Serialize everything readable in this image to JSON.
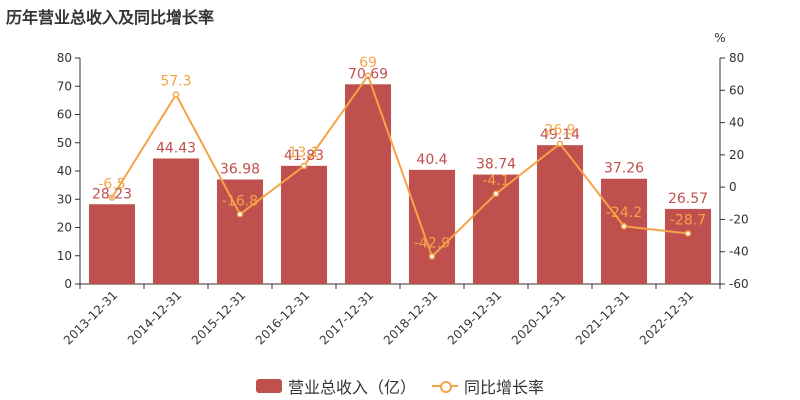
{
  "title": "历年营业总收入及同比增长率",
  "chart_data": {
    "type": "bar",
    "categories": [
      "2013-12-31",
      "2014-12-31",
      "2015-12-31",
      "2016-12-31",
      "2017-12-31",
      "2018-12-31",
      "2019-12-31",
      "2020-12-31",
      "2021-12-31",
      "2022-12-31"
    ],
    "series": [
      {
        "name": "营业总收入（亿）",
        "type": "bar",
        "axis": "left",
        "values": [
          28.23,
          44.43,
          36.98,
          41.83,
          70.69,
          40.4,
          38.74,
          49.14,
          37.26,
          26.57
        ],
        "labels": [
          "28.23",
          "44.43",
          "36.98",
          "41.83",
          "70.69",
          "40.4",
          "38.74",
          "49.14",
          "37.26",
          "26.57"
        ]
      },
      {
        "name": "同比增长率",
        "type": "line",
        "axis": "right",
        "values": [
          -6.5,
          57.3,
          -16.8,
          13.1,
          69,
          -42.9,
          -4.1,
          26.9,
          -24.2,
          -28.7
        ],
        "labels": [
          "-6.5",
          "57.3",
          "-16.8",
          "13.1",
          "69",
          "-42.9",
          "-4.1",
          "26.9",
          "-24.2",
          "-28.7"
        ]
      }
    ],
    "y_left": {
      "min": 0,
      "max": 80,
      "ticks": [
        "0",
        "10",
        "20",
        "30",
        "40",
        "50",
        "60",
        "70",
        "80"
      ]
    },
    "y_right": {
      "min": -60,
      "max": 80,
      "unit": "%",
      "ticks": [
        "-60",
        "-40",
        "-20",
        "0",
        "20",
        "40",
        "60",
        "80"
      ]
    },
    "legend_position": "bottom-center",
    "grid": false,
    "colors": {
      "bar": "#c0504d",
      "line": "#f4a447"
    }
  }
}
